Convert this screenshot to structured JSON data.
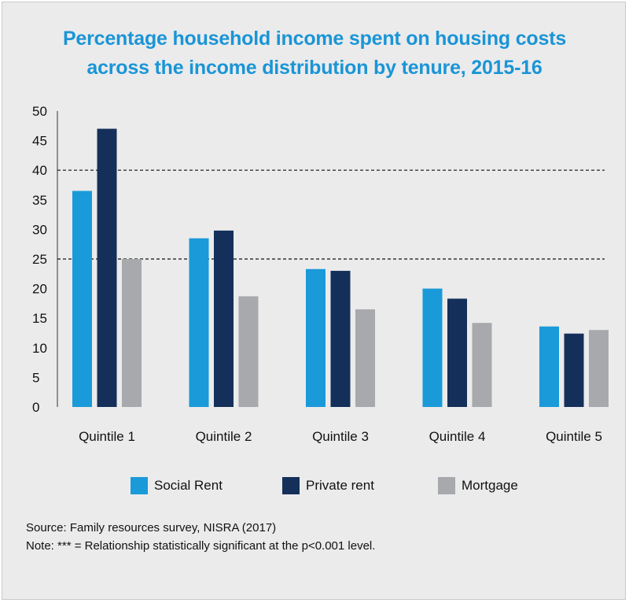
{
  "chart_data": {
    "type": "bar",
    "title_lines": [
      "Percentage household income spent on housing costs",
      "across the income distribution by tenure, 2015-16"
    ],
    "categories": [
      "Quintile 1",
      "Quintile 2",
      "Quintile 3",
      "Quintile 4",
      "Quintile 5"
    ],
    "series": [
      {
        "name": "Social Rent",
        "color": "#1a9ad9",
        "values": [
          36.5,
          28.5,
          23.3,
          20.0,
          13.6
        ]
      },
      {
        "name": "Private rent",
        "color": "#14305a",
        "values": [
          47.0,
          29.8,
          23.0,
          18.3,
          12.4
        ]
      },
      {
        "name": "Mortgage",
        "color": "#a7a9ac",
        "values": [
          25.0,
          18.7,
          16.5,
          14.2,
          13.0
        ]
      }
    ],
    "ylim": [
      0,
      50
    ],
    "yticks": [
      0,
      5,
      10,
      15,
      20,
      25,
      30,
      35,
      40,
      45,
      50
    ],
    "reference_lines": [
      25,
      40
    ],
    "xlabel": "",
    "ylabel": "",
    "legend_position": "bottom"
  },
  "footer": {
    "source": "Source: Family resources survey, NISRA (2017)",
    "note": "Note: *** = Relationship statistically significant at the p<0.001 level."
  }
}
